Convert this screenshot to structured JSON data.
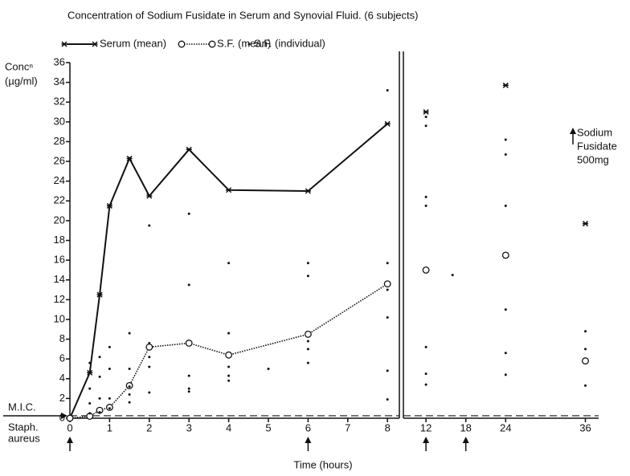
{
  "chart_data": {
    "type": "line",
    "title": "Concentration of Sodium Fusidate in Serum and Synovial Fluid. (6 subjects)",
    "y_label": [
      "Concⁿ",
      "(µg/ml)"
    ],
    "x_label": "Time (hours)",
    "ylim": [
      0,
      36
    ],
    "yticks": [
      0,
      2,
      4,
      6,
      8,
      10,
      12,
      14,
      16,
      18,
      20,
      22,
      24,
      26,
      28,
      30,
      32,
      34,
      36
    ],
    "panels": [
      {
        "xlim": [
          0,
          8.3
        ],
        "xticks": [
          0,
          1,
          2,
          3,
          4,
          5,
          6,
          7,
          8
        ]
      },
      {
        "xlim": [
          8.6,
          38
        ],
        "xticks": [
          12,
          18,
          24,
          36
        ]
      }
    ],
    "mic": {
      "label": [
        "M.I.C.",
        "Staph.",
        "aureus"
      ],
      "value": 0.25
    },
    "dose": {
      "label": [
        "Sodium",
        "Fusidate",
        "500mg"
      ],
      "times": [
        0,
        6,
        12,
        18
      ]
    },
    "color": "#111111",
    "series": [
      {
        "name": "Serum (mean)",
        "marker": "star",
        "line": "solid",
        "x": [
          0,
          0.5,
          0.75,
          1,
          1.5,
          2,
          3,
          4,
          6,
          8,
          12,
          24,
          36
        ],
        "values": [
          0,
          4.6,
          12.5,
          21.5,
          26.3,
          22.5,
          27.2,
          23.1,
          23,
          29.8,
          31,
          33.7,
          19.7
        ]
      },
      {
        "name": "S.F. (mean)",
        "marker": "circle",
        "line": "dotted",
        "x": [
          0,
          0.5,
          0.75,
          1,
          1.5,
          2,
          3,
          4,
          6,
          8,
          12,
          24,
          36
        ],
        "values": [
          0,
          0.2,
          0.8,
          1.1,
          3.3,
          7.2,
          7.6,
          6.4,
          8.5,
          13.6,
          15,
          16.5,
          5.8
        ]
      },
      {
        "name": "S.F. (individual)",
        "marker": "dot",
        "line": "none",
        "x": [
          0.5,
          0.5,
          0.5,
          0.5,
          0.75,
          0.75,
          0.75,
          0.75,
          1,
          1,
          1,
          1,
          1.5,
          1.5,
          1.5,
          1.5,
          1.5,
          2,
          2,
          2,
          2,
          2,
          3,
          3,
          3,
          3,
          3,
          4,
          4,
          4,
          4,
          4,
          5,
          6,
          6,
          6,
          6,
          6,
          8,
          8,
          8,
          8,
          8,
          8,
          12,
          12,
          12,
          12,
          12,
          12,
          12,
          16,
          24,
          24,
          24,
          24,
          24,
          24,
          36,
          36,
          36
        ],
        "values": [
          5.6,
          3.0,
          1.5,
          0.5,
          6.2,
          4.2,
          2.0,
          0.6,
          7.2,
          5.0,
          2.0,
          1.0,
          8.6,
          5.0,
          3.2,
          2.4,
          1.6,
          19.5,
          7.6,
          6.2,
          5.2,
          2.6,
          20.7,
          13.5,
          4.3,
          3.0,
          2.7,
          15.7,
          8.6,
          5.2,
          4.3,
          3.8,
          5.0,
          15.7,
          14.4,
          7.8,
          7.0,
          5.6,
          33.2,
          15.7,
          13.0,
          10.2,
          4.8,
          1.9,
          30.5,
          29.6,
          22.4,
          21.5,
          7.2,
          4.5,
          3.4,
          14.5,
          28.2,
          26.7,
          21.5,
          11.0,
          6.6,
          4.4,
          8.8,
          7.0,
          3.3
        ]
      }
    ]
  }
}
